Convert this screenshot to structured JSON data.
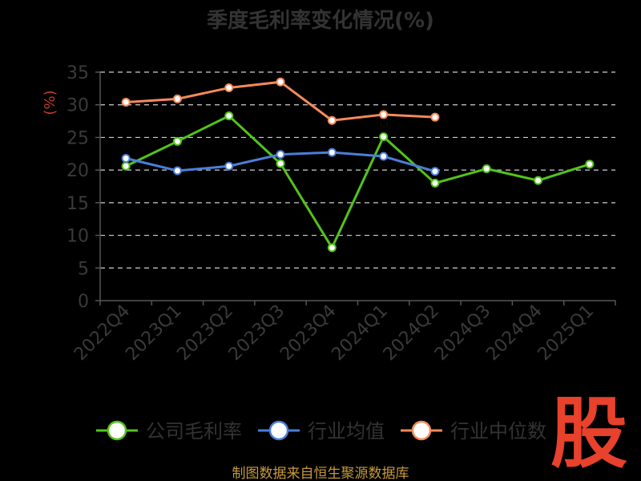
{
  "chart_data": {
    "type": "line",
    "title": "季度毛利率变化情况(%)",
    "ylabel": "(%)",
    "xlabel": "",
    "categories": [
      "2022Q4",
      "2023Q1",
      "2023Q2",
      "2023Q3",
      "2023Q4",
      "2024Q1",
      "2024Q2",
      "2024Q3",
      "2024Q4",
      "2025Q1"
    ],
    "ylim": [
      0,
      35
    ],
    "yticks": [
      0,
      5,
      10,
      15,
      20,
      25,
      30,
      35
    ],
    "grid": true,
    "legend_position": "bottom",
    "series": [
      {
        "name": "公司毛利率",
        "color": "#52c41a",
        "values": [
          20.6,
          24.4,
          28.3,
          21.0,
          8.1,
          25.1,
          18.0,
          20.2,
          18.4,
          20.9
        ]
      },
      {
        "name": "行业均值",
        "color": "#4a7fd9",
        "values": [
          21.8,
          19.9,
          20.6,
          22.4,
          22.7,
          22.1,
          19.8,
          null,
          null,
          null
        ]
      },
      {
        "name": "行业中位数",
        "color": "#f58a5b",
        "values": [
          30.4,
          30.9,
          32.6,
          33.5,
          27.6,
          28.5,
          28.1,
          null,
          null,
          null
        ]
      }
    ]
  },
  "footer": {
    "source": "制图数据来自恒生聚源数据库"
  },
  "watermark": {
    "text": "股"
  }
}
